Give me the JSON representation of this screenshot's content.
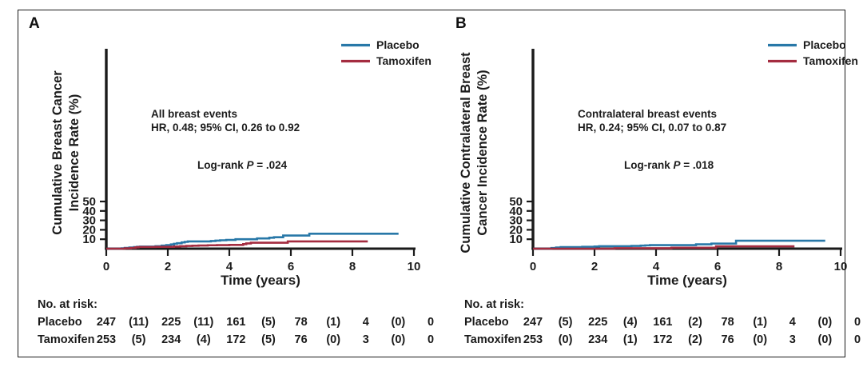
{
  "figure": {
    "panels": [
      {
        "label": "A",
        "ylabel_line1": "Cumulative Breast Cancer",
        "ylabel_line2": "Incidence Rate (%)",
        "xlabel": "Time (years)",
        "annotation": {
          "line1": "All breast events",
          "line2": "HR, 0.48; 95% CI, 0.26 to 0.92"
        },
        "logrank": {
          "prefix": "Log-rank ",
          "p": "P",
          "rest": " = .024"
        },
        "risk_table": {
          "header": "No. at risk:",
          "rows": [
            {
              "name": "Placebo",
              "values": [
                "247",
                "(11)",
                "225",
                "(11)",
                "161",
                "(5)",
                "78",
                "(1)",
                "4",
                "(0)",
                "0"
              ]
            },
            {
              "name": "Tamoxifen",
              "values": [
                "253",
                "(5)",
                "234",
                "(4)",
                "172",
                "(5)",
                "76",
                "(0)",
                "3",
                "(0)",
                "0"
              ]
            }
          ]
        }
      },
      {
        "label": "B",
        "ylabel_line1": "Cumulative Contralateral Breast",
        "ylabel_line2": "Cancer Incidence Rate (%)",
        "xlabel": "Time (years)",
        "annotation": {
          "line1": "Contralateral breast events",
          "line2": "HR, 0.24; 95% CI, 0.07 to 0.87"
        },
        "logrank": {
          "prefix": "Log-rank ",
          "p": "P",
          "rest": " = .018"
        },
        "risk_table": {
          "header": "No. at risk:",
          "rows": [
            {
              "name": "Placebo",
              "values": [
                "247",
                "(5)",
                "225",
                "(4)",
                "161",
                "(2)",
                "78",
                "(1)",
                "4",
                "(0)",
                "0"
              ]
            },
            {
              "name": "Tamoxifen",
              "values": [
                "253",
                "(0)",
                "234",
                "(1)",
                "172",
                "(2)",
                "76",
                "(0)",
                "3",
                "(0)",
                "0"
              ]
            }
          ]
        }
      }
    ],
    "colors": {
      "placebo": "#2878A8",
      "tamoxifen": "#A42C40",
      "axis": "#1a1a1a"
    }
  },
  "chart_data": [
    {
      "type": "line",
      "step": true,
      "panel": "A",
      "xlabel": "Time (years)",
      "ylabel": "Cumulative Breast Cancer Incidence Rate (%)",
      "xlim": [
        0,
        10
      ],
      "ylim": [
        0,
        50
      ],
      "xticks": [
        0,
        2,
        4,
        6,
        8,
        10
      ],
      "yticks": [
        10,
        20,
        30,
        40,
        50
      ],
      "legend_position": "top-right",
      "grid": false,
      "series": [
        {
          "name": "Placebo",
          "color": "#2878A8",
          "points": [
            [
              0,
              0
            ],
            [
              0.5,
              0.4
            ],
            [
              0.6,
              0.8
            ],
            [
              0.75,
              1.2
            ],
            [
              0.9,
              1.6
            ],
            [
              1.0,
              2.0
            ],
            [
              1.1,
              2.2
            ],
            [
              1.6,
              2.6
            ],
            [
              1.8,
              3.2
            ],
            [
              1.95,
              3.8
            ],
            [
              2.1,
              4.5
            ],
            [
              2.2,
              5.2
            ],
            [
              2.3,
              5.8
            ],
            [
              2.45,
              6.6
            ],
            [
              2.55,
              7.2
            ],
            [
              2.65,
              7.7
            ],
            [
              3.4,
              8.1
            ],
            [
              3.55,
              8.5
            ],
            [
              3.7,
              8.9
            ],
            [
              3.9,
              9.3
            ],
            [
              4.2,
              10.0
            ],
            [
              4.9,
              10.9
            ],
            [
              5.3,
              11.6
            ],
            [
              5.45,
              12.1
            ],
            [
              5.75,
              13.9
            ],
            [
              6.6,
              15.8
            ],
            [
              9.5,
              15.8
            ]
          ]
        },
        {
          "name": "Tamoxifen",
          "color": "#A42C40",
          "points": [
            [
              0,
              0
            ],
            [
              0.6,
              0.4
            ],
            [
              0.8,
              0.8
            ],
            [
              0.95,
              1.4
            ],
            [
              1.05,
              1.8
            ],
            [
              1.6,
              2.0
            ],
            [
              2.2,
              2.3
            ],
            [
              2.4,
              2.6
            ],
            [
              2.6,
              2.9
            ],
            [
              2.8,
              3.1
            ],
            [
              3.0,
              3.3
            ],
            [
              3.3,
              3.6
            ],
            [
              3.6,
              3.8
            ],
            [
              4.0,
              4.0
            ],
            [
              4.45,
              4.8
            ],
            [
              4.55,
              5.6
            ],
            [
              4.7,
              6.3
            ],
            [
              5.9,
              7.7
            ],
            [
              8.5,
              7.7
            ]
          ]
        }
      ]
    },
    {
      "type": "line",
      "step": true,
      "panel": "B",
      "xlabel": "Time (years)",
      "ylabel": "Cumulative Contralateral Breast Cancer Incidence Rate (%)",
      "xlim": [
        0,
        10
      ],
      "ylim": [
        0,
        50
      ],
      "xticks": [
        0,
        2,
        4,
        6,
        8,
        10
      ],
      "yticks": [
        10,
        20,
        30,
        40,
        50
      ],
      "legend_position": "top-right",
      "grid": false,
      "series": [
        {
          "name": "Placebo",
          "color": "#2878A8",
          "points": [
            [
              0,
              0
            ],
            [
              0.6,
              0.7
            ],
            [
              0.75,
              1.2
            ],
            [
              0.9,
              1.7
            ],
            [
              1.6,
              2.0
            ],
            [
              2.0,
              2.3
            ],
            [
              2.15,
              2.6
            ],
            [
              3.2,
              2.9
            ],
            [
              3.5,
              3.2
            ],
            [
              3.65,
              3.5
            ],
            [
              3.8,
              3.8
            ],
            [
              5.3,
              4.6
            ],
            [
              5.8,
              5.4
            ],
            [
              6.6,
              8.4
            ],
            [
              9.5,
              8.4
            ]
          ]
        },
        {
          "name": "Tamoxifen",
          "color": "#A42C40",
          "points": [
            [
              0,
              0
            ],
            [
              2.65,
              0.5
            ],
            [
              4.5,
              1.0
            ],
            [
              5.95,
              2.5
            ],
            [
              8.5,
              2.5
            ]
          ]
        }
      ]
    }
  ]
}
